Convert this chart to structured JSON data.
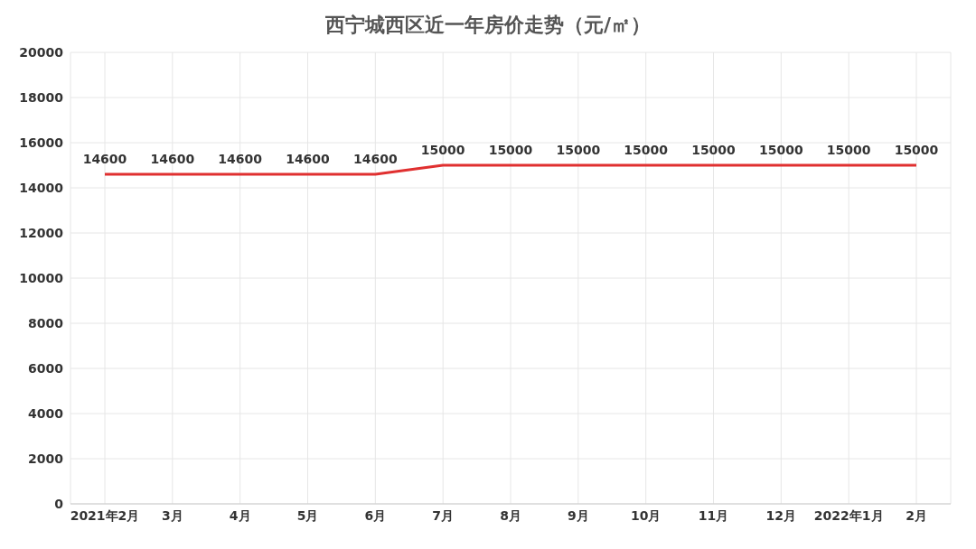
{
  "chart_data": {
    "type": "line",
    "title": "西宁城西区近一年房价走势（元/㎡）",
    "categories": [
      "2021年2月",
      "3月",
      "4月",
      "5月",
      "6月",
      "7月",
      "8月",
      "9月",
      "10月",
      "11月",
      "12月",
      "2022年1月",
      "2月"
    ],
    "series": [
      {
        "color": "#e03030",
        "values": [
          14600,
          14600,
          14600,
          14600,
          14600,
          15000,
          15000,
          15000,
          15000,
          15000,
          15000,
          15000,
          15000
        ]
      }
    ],
    "ylim": [
      0,
      20000
    ],
    "yticks": [
      0,
      2000,
      4000,
      6000,
      8000,
      10000,
      12000,
      14000,
      16000,
      18000,
      20000
    ],
    "grid": true,
    "data_labels": true,
    "marker": "none",
    "line_style": "solid",
    "legend": false
  }
}
